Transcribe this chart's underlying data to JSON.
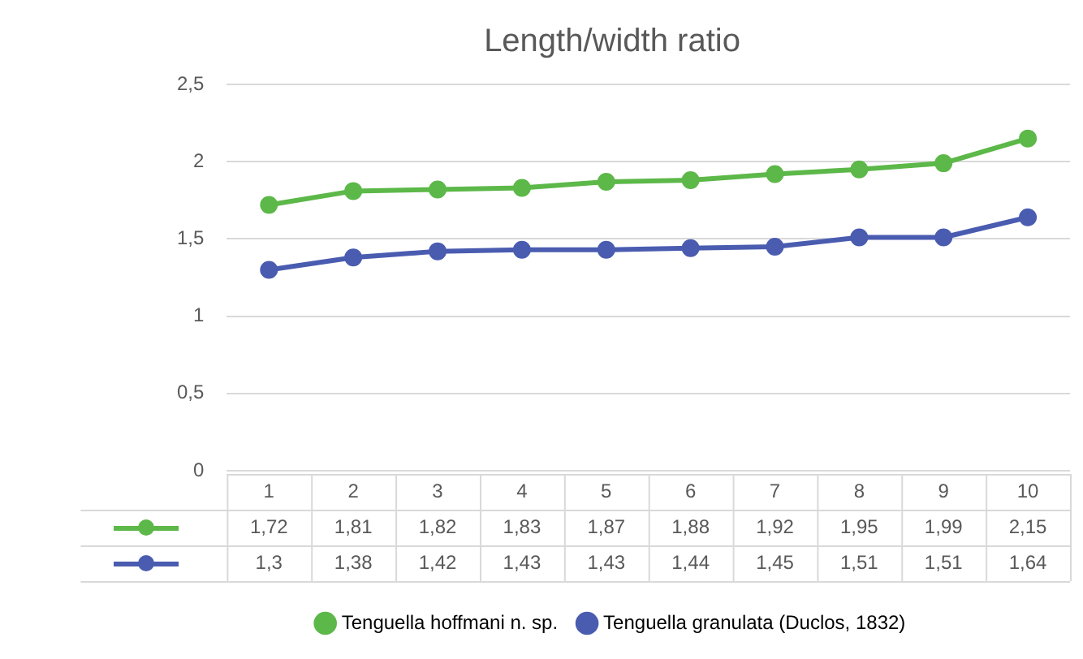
{
  "chart_data": {
    "type": "line",
    "title": "Length/width ratio",
    "categories": [
      "1",
      "2",
      "3",
      "4",
      "5",
      "6",
      "7",
      "8",
      "9",
      "10"
    ],
    "series": [
      {
        "name": "Tenguella hoffmani n. sp.",
        "color": "#5cb848",
        "values": [
          1.72,
          1.81,
          1.82,
          1.83,
          1.87,
          1.88,
          1.92,
          1.95,
          1.99,
          2.15
        ],
        "value_labels": [
          "1,72",
          "1,81",
          "1,82",
          "1,83",
          "1,87",
          "1,88",
          "1,92",
          "1,95",
          "1,99",
          "2,15"
        ]
      },
      {
        "name": "Tenguella granulata (Duclos, 1832)",
        "color": "#4a5cb0",
        "values": [
          1.3,
          1.38,
          1.42,
          1.43,
          1.43,
          1.44,
          1.45,
          1.51,
          1.51,
          1.64
        ],
        "value_labels": [
          "1,3",
          "1,38",
          "1,42",
          "1,43",
          "1,43",
          "1,44",
          "1,45",
          "1,51",
          "1,51",
          "1,64"
        ]
      }
    ],
    "ylim": [
      0,
      2.5
    ],
    "yticks": [
      0,
      {
        "value": 0.5,
        "label": "0,5"
      },
      1,
      {
        "value": 1.5,
        "label": "1,5"
      },
      2,
      {
        "value": 2.5,
        "label": "2,5"
      }
    ],
    "grid": "y",
    "legend": "bottom",
    "marker": "circle",
    "line_style": "solid"
  }
}
